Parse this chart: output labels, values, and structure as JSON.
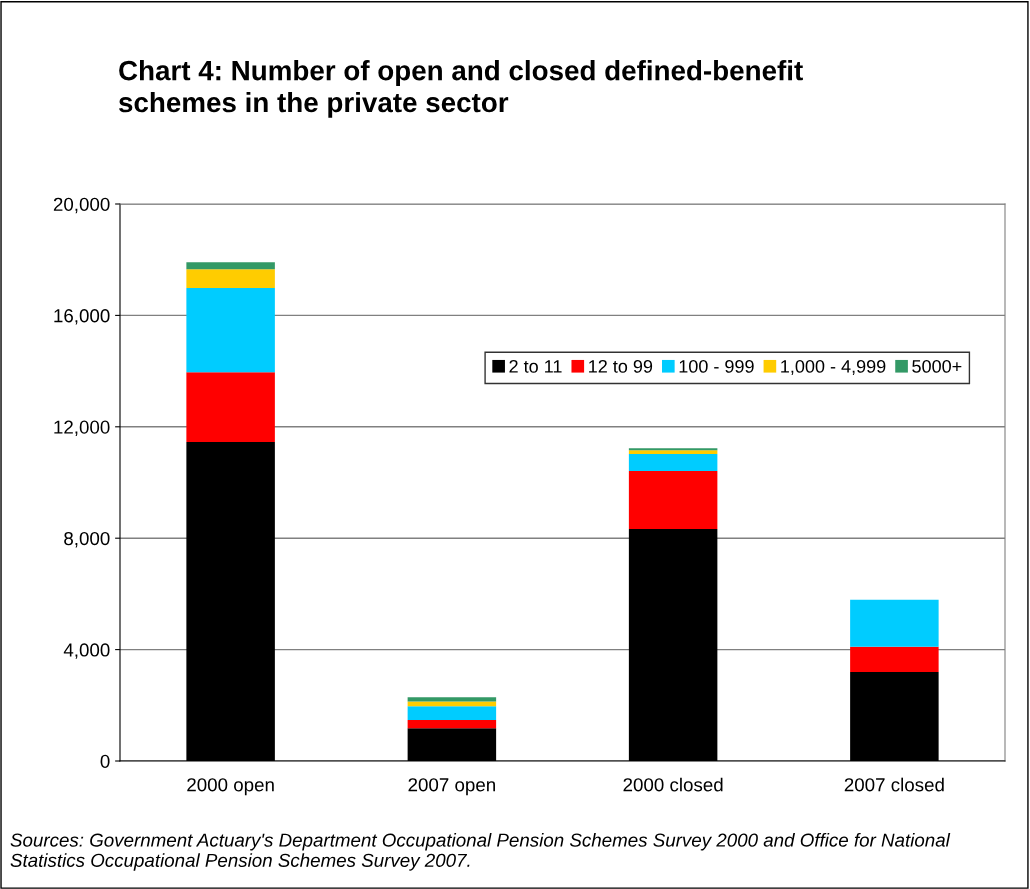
{
  "chart_data": {
    "type": "bar",
    "stacked": true,
    "title": "Chart 4: Number of open and closed defined-benefit\nschemes in the private sector",
    "categories": [
      "2000 open",
      "2007 open",
      "2000 closed",
      "2007 closed"
    ],
    "series": [
      {
        "name": "2 to 11",
        "color": "#000000",
        "values": [
          11450,
          1180,
          8330,
          3200
        ]
      },
      {
        "name": "12 to 99",
        "color": "#ff0000",
        "values": [
          2510,
          290,
          2080,
          900
        ]
      },
      {
        "name": "100 - 999",
        "color": "#00ccff",
        "values": [
          3020,
          500,
          610,
          1690
        ]
      },
      {
        "name": "1,000 - 4,999",
        "color": "#ffcc00",
        "values": [
          680,
          170,
          140,
          0
        ]
      },
      {
        "name": "5000+",
        "color": "#339966",
        "values": [
          250,
          150,
          70,
          0
        ]
      }
    ],
    "ylim": [
      0,
      20000
    ],
    "yticks": [
      {
        "value": 0,
        "label": "0"
      },
      {
        "value": 4000,
        "label": "4,000"
      },
      {
        "value": 8000,
        "label": "8,000"
      },
      {
        "value": 12000,
        "label": "12,000"
      },
      {
        "value": 16000,
        "label": "16,000"
      },
      {
        "value": 20000,
        "label": "20,000"
      }
    ],
    "grid": "y",
    "legend": "top right",
    "annotations": [
      "Sources: Government Actuary's Department Occupational Pension Schemes Survey 2000 and Office for National Statistics Occupational Pension Schemes Survey 2007."
    ]
  }
}
